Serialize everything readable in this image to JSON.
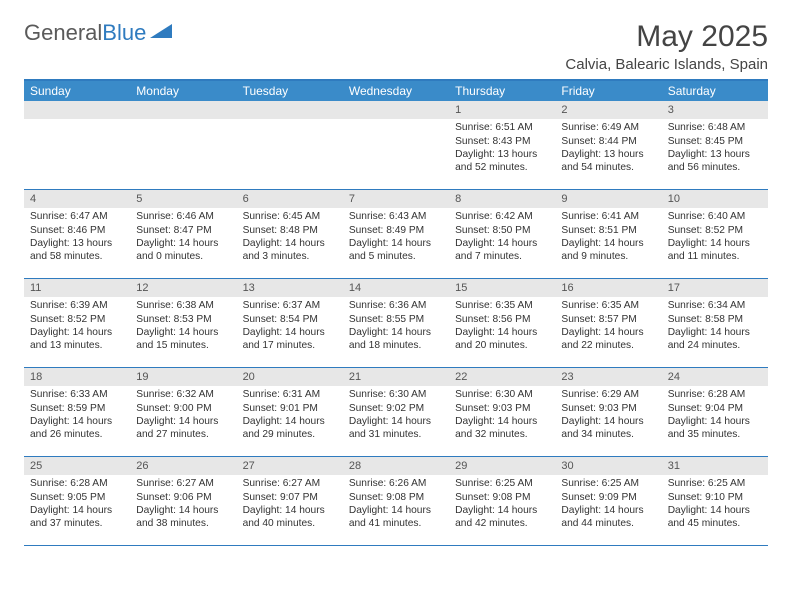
{
  "brand": {
    "part1": "General",
    "part2": "Blue"
  },
  "title": "May 2025",
  "subtitle": "Calvia, Balearic Islands, Spain",
  "colors": {
    "header_bg": "#3a8bc9",
    "border": "#2f7bbf",
    "num_bg": "#e7e7e7",
    "text": "#333333"
  },
  "day_names": [
    "Sunday",
    "Monday",
    "Tuesday",
    "Wednesday",
    "Thursday",
    "Friday",
    "Saturday"
  ],
  "weeks": [
    [
      null,
      null,
      null,
      null,
      {
        "n": "1",
        "sr": "Sunrise: 6:51 AM",
        "ss": "Sunset: 8:43 PM",
        "dl": "Daylight: 13 hours and 52 minutes."
      },
      {
        "n": "2",
        "sr": "Sunrise: 6:49 AM",
        "ss": "Sunset: 8:44 PM",
        "dl": "Daylight: 13 hours and 54 minutes."
      },
      {
        "n": "3",
        "sr": "Sunrise: 6:48 AM",
        "ss": "Sunset: 8:45 PM",
        "dl": "Daylight: 13 hours and 56 minutes."
      }
    ],
    [
      {
        "n": "4",
        "sr": "Sunrise: 6:47 AM",
        "ss": "Sunset: 8:46 PM",
        "dl": "Daylight: 13 hours and 58 minutes."
      },
      {
        "n": "5",
        "sr": "Sunrise: 6:46 AM",
        "ss": "Sunset: 8:47 PM",
        "dl": "Daylight: 14 hours and 0 minutes."
      },
      {
        "n": "6",
        "sr": "Sunrise: 6:45 AM",
        "ss": "Sunset: 8:48 PM",
        "dl": "Daylight: 14 hours and 3 minutes."
      },
      {
        "n": "7",
        "sr": "Sunrise: 6:43 AM",
        "ss": "Sunset: 8:49 PM",
        "dl": "Daylight: 14 hours and 5 minutes."
      },
      {
        "n": "8",
        "sr": "Sunrise: 6:42 AM",
        "ss": "Sunset: 8:50 PM",
        "dl": "Daylight: 14 hours and 7 minutes."
      },
      {
        "n": "9",
        "sr": "Sunrise: 6:41 AM",
        "ss": "Sunset: 8:51 PM",
        "dl": "Daylight: 14 hours and 9 minutes."
      },
      {
        "n": "10",
        "sr": "Sunrise: 6:40 AM",
        "ss": "Sunset: 8:52 PM",
        "dl": "Daylight: 14 hours and 11 minutes."
      }
    ],
    [
      {
        "n": "11",
        "sr": "Sunrise: 6:39 AM",
        "ss": "Sunset: 8:52 PM",
        "dl": "Daylight: 14 hours and 13 minutes."
      },
      {
        "n": "12",
        "sr": "Sunrise: 6:38 AM",
        "ss": "Sunset: 8:53 PM",
        "dl": "Daylight: 14 hours and 15 minutes."
      },
      {
        "n": "13",
        "sr": "Sunrise: 6:37 AM",
        "ss": "Sunset: 8:54 PM",
        "dl": "Daylight: 14 hours and 17 minutes."
      },
      {
        "n": "14",
        "sr": "Sunrise: 6:36 AM",
        "ss": "Sunset: 8:55 PM",
        "dl": "Daylight: 14 hours and 18 minutes."
      },
      {
        "n": "15",
        "sr": "Sunrise: 6:35 AM",
        "ss": "Sunset: 8:56 PM",
        "dl": "Daylight: 14 hours and 20 minutes."
      },
      {
        "n": "16",
        "sr": "Sunrise: 6:35 AM",
        "ss": "Sunset: 8:57 PM",
        "dl": "Daylight: 14 hours and 22 minutes."
      },
      {
        "n": "17",
        "sr": "Sunrise: 6:34 AM",
        "ss": "Sunset: 8:58 PM",
        "dl": "Daylight: 14 hours and 24 minutes."
      }
    ],
    [
      {
        "n": "18",
        "sr": "Sunrise: 6:33 AM",
        "ss": "Sunset: 8:59 PM",
        "dl": "Daylight: 14 hours and 26 minutes."
      },
      {
        "n": "19",
        "sr": "Sunrise: 6:32 AM",
        "ss": "Sunset: 9:00 PM",
        "dl": "Daylight: 14 hours and 27 minutes."
      },
      {
        "n": "20",
        "sr": "Sunrise: 6:31 AM",
        "ss": "Sunset: 9:01 PM",
        "dl": "Daylight: 14 hours and 29 minutes."
      },
      {
        "n": "21",
        "sr": "Sunrise: 6:30 AM",
        "ss": "Sunset: 9:02 PM",
        "dl": "Daylight: 14 hours and 31 minutes."
      },
      {
        "n": "22",
        "sr": "Sunrise: 6:30 AM",
        "ss": "Sunset: 9:03 PM",
        "dl": "Daylight: 14 hours and 32 minutes."
      },
      {
        "n": "23",
        "sr": "Sunrise: 6:29 AM",
        "ss": "Sunset: 9:03 PM",
        "dl": "Daylight: 14 hours and 34 minutes."
      },
      {
        "n": "24",
        "sr": "Sunrise: 6:28 AM",
        "ss": "Sunset: 9:04 PM",
        "dl": "Daylight: 14 hours and 35 minutes."
      }
    ],
    [
      {
        "n": "25",
        "sr": "Sunrise: 6:28 AM",
        "ss": "Sunset: 9:05 PM",
        "dl": "Daylight: 14 hours and 37 minutes."
      },
      {
        "n": "26",
        "sr": "Sunrise: 6:27 AM",
        "ss": "Sunset: 9:06 PM",
        "dl": "Daylight: 14 hours and 38 minutes."
      },
      {
        "n": "27",
        "sr": "Sunrise: 6:27 AM",
        "ss": "Sunset: 9:07 PM",
        "dl": "Daylight: 14 hours and 40 minutes."
      },
      {
        "n": "28",
        "sr": "Sunrise: 6:26 AM",
        "ss": "Sunset: 9:08 PM",
        "dl": "Daylight: 14 hours and 41 minutes."
      },
      {
        "n": "29",
        "sr": "Sunrise: 6:25 AM",
        "ss": "Sunset: 9:08 PM",
        "dl": "Daylight: 14 hours and 42 minutes."
      },
      {
        "n": "30",
        "sr": "Sunrise: 6:25 AM",
        "ss": "Sunset: 9:09 PM",
        "dl": "Daylight: 14 hours and 44 minutes."
      },
      {
        "n": "31",
        "sr": "Sunrise: 6:25 AM",
        "ss": "Sunset: 9:10 PM",
        "dl": "Daylight: 14 hours and 45 minutes."
      }
    ]
  ]
}
